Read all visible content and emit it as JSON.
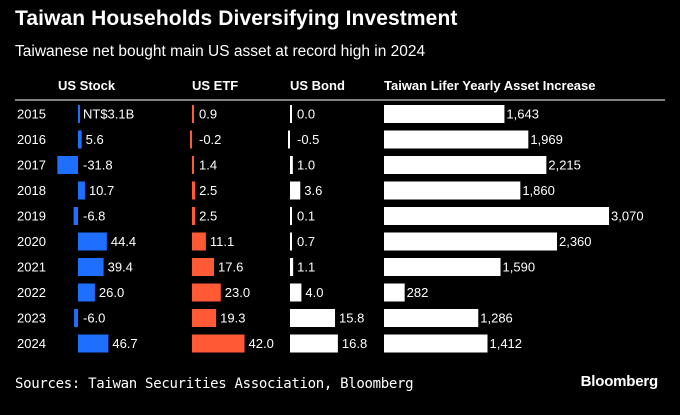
{
  "title": "Taiwan Households Diversifying Investment",
  "subtitle": "Taiwanese net bought main US asset at record high in 2024",
  "source": "Sources: Taiwan Securities Association, Bloomberg",
  "brand": "Bloomberg",
  "chart_data": {
    "type": "bar",
    "categories": [
      "2015",
      "2016",
      "2017",
      "2018",
      "2019",
      "2020",
      "2021",
      "2022",
      "2023",
      "2024"
    ],
    "series": [
      {
        "name": "US Stock",
        "unit_prefix": "NT$",
        "unit_suffix": "B",
        "color": "#1f6fff",
        "values": [
          3.1,
          5.6,
          -31.8,
          10.7,
          -6.8,
          44.4,
          39.4,
          26.0,
          -6.0,
          46.7
        ],
        "labels": [
          "NT$3.1B",
          "5.6",
          "-31.8",
          "10.7",
          "-6.8",
          "44.4",
          "39.4",
          "26.0",
          "-6.0",
          "46.7"
        ]
      },
      {
        "name": "US ETF",
        "color": "#ff5a36",
        "values": [
          0.9,
          -0.2,
          1.4,
          2.5,
          2.5,
          11.1,
          17.6,
          23.0,
          19.3,
          42.0
        ],
        "labels": [
          "0.9",
          "-0.2",
          "1.4",
          "2.5",
          "2.5",
          "11.1",
          "17.6",
          "23.0",
          "19.3",
          "42.0"
        ]
      },
      {
        "name": "US Bond",
        "color": "#ffffff",
        "values": [
          0.0,
          -0.5,
          1.0,
          3.6,
          0.1,
          0.7,
          1.1,
          4.0,
          15.8,
          16.8
        ],
        "labels": [
          "0.0",
          "-0.5",
          "1.0",
          "3.6",
          "0.1",
          "0.7",
          "1.1",
          "4.0",
          "15.8",
          "16.8"
        ]
      },
      {
        "name": "Taiwan Lifer Yearly Asset Increase",
        "color": "#ffffff",
        "values": [
          1643,
          1969,
          2215,
          1860,
          3070,
          2360,
          1590,
          282,
          1286,
          1412
        ],
        "labels": [
          "1,643",
          "1,969",
          "2,215",
          "1,860",
          "3,070",
          "2,360",
          "1,590",
          "282",
          "1,286",
          "1,412"
        ]
      }
    ]
  }
}
